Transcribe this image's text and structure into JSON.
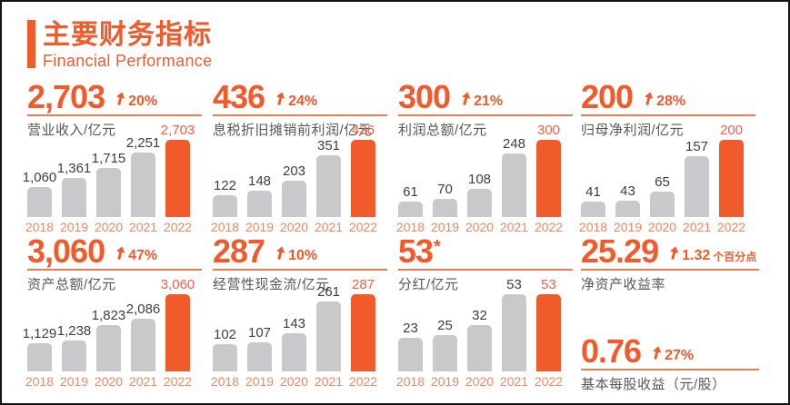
{
  "header": {
    "title": "主要财务指标",
    "subtitle": "Financial Performance"
  },
  "colors": {
    "primary": "#F15A2B",
    "soft": "#F07B50",
    "year": "#F5855F",
    "highlight_label": "#F26049",
    "bar_gray": "#C9C9CB",
    "value_text": "#3E3E40",
    "label_text": "#595757",
    "border": "#141414"
  },
  "chart_data": [
    {
      "type": "bar",
      "title": "营业收入/亿元",
      "headline": "2,703",
      "yoy_change": "20%",
      "categories": [
        "2018",
        "2019",
        "2020",
        "2021",
        "2022"
      ],
      "values": [
        1060,
        1361,
        1715,
        2251,
        2703
      ],
      "bar_labels": [
        "1,060",
        "1,361",
        "1,715",
        "2,251",
        "2,703"
      ],
      "highlight_index": 4,
      "legend": "none",
      "grid": false
    },
    {
      "type": "bar",
      "title": "息税折旧摊销前利润/亿元",
      "headline": "436",
      "yoy_change": "24%",
      "categories": [
        "2018",
        "2019",
        "2020",
        "2021",
        "2022"
      ],
      "values": [
        122,
        148,
        203,
        351,
        436
      ],
      "bar_labels": [
        "122",
        "148",
        "203",
        "351",
        "436"
      ],
      "highlight_index": 4,
      "legend": "none",
      "grid": false
    },
    {
      "type": "bar",
      "title": "利润总额/亿元",
      "headline": "300",
      "yoy_change": "21%",
      "categories": [
        "2018",
        "2019",
        "2020",
        "2021",
        "2022"
      ],
      "values": [
        61,
        70,
        108,
        248,
        300
      ],
      "bar_labels": [
        "61",
        "70",
        "108",
        "248",
        "300"
      ],
      "highlight_index": 4,
      "legend": "none",
      "grid": false
    },
    {
      "type": "bar",
      "title": "归母净利润/亿元",
      "headline": "200",
      "yoy_change": "28%",
      "categories": [
        "2018",
        "2019",
        "2020",
        "2021",
        "2022"
      ],
      "values": [
        41,
        43,
        65,
        157,
        200
      ],
      "bar_labels": [
        "41",
        "43",
        "65",
        "157",
        "200"
      ],
      "highlight_index": 4,
      "legend": "none",
      "grid": false
    },
    {
      "type": "bar",
      "title": "资产总额/亿元",
      "headline": "3,060",
      "yoy_change": "47%",
      "categories": [
        "2018",
        "2019",
        "2020",
        "2021",
        "2022"
      ],
      "values": [
        1129,
        1238,
        1823,
        2086,
        3060
      ],
      "bar_labels": [
        "1,129",
        "1,238",
        "1,823",
        "2,086",
        "3,060"
      ],
      "highlight_index": 4,
      "legend": "none",
      "grid": false
    },
    {
      "type": "bar",
      "title": "经营性现金流/亿元",
      "headline": "287",
      "yoy_change": "10%",
      "categories": [
        "2018",
        "2019",
        "2020",
        "2021",
        "2022"
      ],
      "values": [
        102,
        107,
        143,
        261,
        287
      ],
      "bar_labels": [
        "102",
        "107",
        "143",
        "261",
        "287"
      ],
      "highlight_index": 4,
      "legend": "none",
      "grid": false
    },
    {
      "type": "bar",
      "title": "分红/亿元",
      "headline": "53",
      "headline_suffix": "*",
      "yoy_change": null,
      "categories": [
        "2018",
        "2019",
        "2020",
        "2021",
        "2022"
      ],
      "values": [
        23,
        25,
        32,
        53,
        53
      ],
      "bar_labels": [
        "23",
        "25",
        "32",
        "53",
        "53"
      ],
      "highlight_index": 4,
      "legend": "none",
      "grid": false
    }
  ],
  "stats": [
    {
      "value": "25.29",
      "change": "1.32",
      "change_unit": "个百分点",
      "label": "净资产收益率"
    },
    {
      "value": "0.76",
      "change": "27%",
      "change_unit": "",
      "label": "基本每股收益（元/股）"
    }
  ]
}
